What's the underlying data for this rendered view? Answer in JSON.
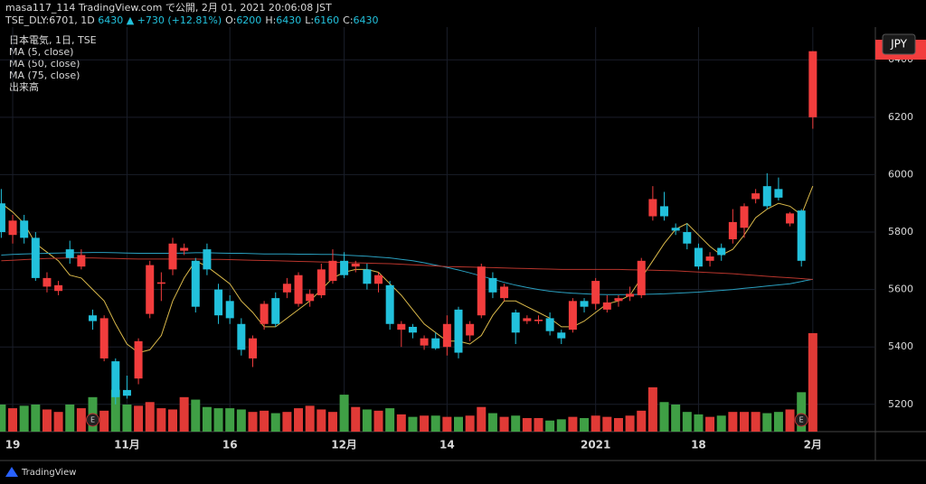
{
  "header": {
    "publisher": "masa117_114 TradingView.com で公開, 2月 01, 2021 20:06:08 JST",
    "symbol": "TSE_DLY:6701, 1D",
    "last": "6430",
    "change": "▲ +730 (+12.81%)",
    "ohlc": [
      {
        "key": "O:",
        "value": "6200"
      },
      {
        "key": "H:",
        "value": "6430"
      },
      {
        "key": "L:",
        "value": "6160"
      },
      {
        "key": "C:",
        "value": "6430"
      }
    ]
  },
  "footer": "TradingView",
  "chart_data": {
    "type": "candlestick",
    "name": "日本電気, 1日, TSE",
    "currency": "JPY",
    "volume_name": "出来高",
    "categories": [
      null,
      "19",
      null,
      null,
      null,
      null,
      null,
      null,
      null,
      null,
      null,
      "11月",
      null,
      null,
      null,
      null,
      null,
      null,
      null,
      null,
      "16",
      null,
      null,
      null,
      null,
      null,
      null,
      null,
      null,
      null,
      "12月",
      null,
      null,
      null,
      null,
      null,
      null,
      null,
      null,
      "14",
      null,
      null,
      null,
      null,
      null,
      null,
      null,
      null,
      null,
      null,
      null,
      null,
      "2021",
      null,
      null,
      null,
      null,
      null,
      null,
      null,
      null,
      "18",
      null,
      null,
      null,
      null,
      null,
      null,
      null,
      null,
      null,
      "2月"
    ],
    "open": [
      5900,
      5790,
      5840,
      5780,
      5610,
      5595,
      5740,
      5680,
      5510,
      5360,
      5350,
      5250,
      5290,
      5515,
      5620,
      5670,
      5735,
      5700,
      5740,
      5600,
      5560,
      5480,
      5360,
      5480,
      5570,
      5590,
      5550,
      5560,
      5580,
      5630,
      5700,
      5680,
      5670,
      5620,
      5615,
      5460,
      5470,
      5405,
      5430,
      5400,
      5530,
      5440,
      5510,
      5640,
      5570,
      5520,
      5490,
      5490,
      5500,
      5450,
      5460,
      5560,
      5550,
      5530,
      5560,
      5575,
      5580,
      5855,
      5890,
      5815,
      5800,
      5745,
      5700,
      5745,
      5775,
      5815,
      5915,
      5960,
      5950,
      5830,
      5875,
      6200
    ],
    "high": [
      5950,
      5860,
      5860,
      5800,
      5660,
      5630,
      5770,
      5740,
      5530,
      5510,
      5360,
      5300,
      5430,
      5700,
      5660,
      5780,
      5760,
      5710,
      5760,
      5620,
      5580,
      5500,
      5440,
      5560,
      5590,
      5640,
      5660,
      5600,
      5690,
      5740,
      5730,
      5700,
      5690,
      5660,
      5630,
      5490,
      5480,
      5440,
      5450,
      5510,
      5540,
      5490,
      5690,
      5660,
      5620,
      5530,
      5510,
      5510,
      5520,
      5460,
      5570,
      5570,
      5640,
      5580,
      5580,
      5610,
      5710,
      5960,
      5940,
      5830,
      5830,
      5760,
      5730,
      5760,
      5880,
      5900,
      5950,
      6005,
      5990,
      5870,
      5880,
      6430
    ],
    "low": [
      5780,
      5760,
      5760,
      5630,
      5590,
      5580,
      5690,
      5670,
      5460,
      5350,
      5200,
      5220,
      5270,
      5500,
      5560,
      5650,
      5720,
      5520,
      5650,
      5480,
      5480,
      5370,
      5330,
      5460,
      5470,
      5570,
      5540,
      5540,
      5570,
      5620,
      5640,
      5660,
      5600,
      5590,
      5460,
      5400,
      5430,
      5390,
      5390,
      5370,
      5360,
      5420,
      5500,
      5570,
      5560,
      5410,
      5480,
      5480,
      5440,
      5410,
      5450,
      5520,
      5530,
      5520,
      5540,
      5560,
      5570,
      5840,
      5840,
      5790,
      5740,
      5670,
      5680,
      5700,
      5760,
      5780,
      5900,
      5880,
      5910,
      5820,
      5680,
      6160
    ],
    "close": [
      5800,
      5840,
      5780,
      5640,
      5640,
      5615,
      5710,
      5720,
      5490,
      5500,
      5225,
      5230,
      5420,
      5685,
      5625,
      5760,
      5745,
      5540,
      5670,
      5510,
      5500,
      5390,
      5430,
      5550,
      5480,
      5620,
      5650,
      5585,
      5670,
      5700,
      5650,
      5690,
      5620,
      5650,
      5480,
      5480,
      5450,
      5430,
      5395,
      5480,
      5380,
      5480,
      5680,
      5590,
      5610,
      5450,
      5500,
      5495,
      5455,
      5430,
      5560,
      5540,
      5630,
      5555,
      5570,
      5585,
      5700,
      5915,
      5855,
      5805,
      5760,
      5680,
      5715,
      5720,
      5835,
      5890,
      5935,
      5890,
      5920,
      5865,
      5700,
      6430
    ],
    "volume": [
      110,
      95,
      105,
      110,
      90,
      80,
      110,
      95,
      140,
      85,
      170,
      110,
      105,
      120,
      95,
      90,
      140,
      130,
      100,
      95,
      95,
      90,
      80,
      85,
      75,
      80,
      95,
      105,
      90,
      80,
      150,
      100,
      90,
      85,
      95,
      70,
      60,
      65,
      65,
      60,
      60,
      65,
      100,
      75,
      60,
      65,
      55,
      55,
      45,
      50,
      60,
      55,
      65,
      60,
      55,
      65,
      85,
      180,
      120,
      110,
      80,
      70,
      60,
      65,
      80,
      80,
      80,
      75,
      80,
      90,
      160,
      400
    ],
    "volume_lim": [
      0,
      550
    ],
    "series": [
      {
        "name": "MA (5, close)",
        "color": "#d9b84a",
        "values": [
          5900,
          5870,
          5830,
          5760,
          5730,
          5700,
          5650,
          5640,
          5600,
          5560,
          5480,
          5410,
          5380,
          5390,
          5440,
          5560,
          5640,
          5700,
          5680,
          5650,
          5620,
          5560,
          5520,
          5470,
          5470,
          5500,
          5530,
          5560,
          5600,
          5640,
          5660,
          5670,
          5670,
          5660,
          5620,
          5580,
          5530,
          5480,
          5450,
          5420,
          5420,
          5410,
          5440,
          5510,
          5560,
          5560,
          5540,
          5520,
          5500,
          5470,
          5470,
          5490,
          5520,
          5550,
          5560,
          5580,
          5640,
          5700,
          5760,
          5810,
          5830,
          5790,
          5750,
          5720,
          5740,
          5790,
          5850,
          5880,
          5900,
          5890,
          5860,
          5960
        ]
      },
      {
        "name": "MA (50, close)",
        "color": "#2a9fbf",
        "values": [
          5720,
          5722,
          5724,
          5725,
          5726,
          5727,
          5728,
          5728,
          5729,
          5729,
          5728,
          5727,
          5726,
          5726,
          5726,
          5726,
          5727,
          5728,
          5728,
          5727,
          5726,
          5726,
          5725,
          5724,
          5724,
          5724,
          5723,
          5723,
          5722,
          5722,
          5720,
          5718,
          5716,
          5713,
          5710,
          5705,
          5700,
          5693,
          5685,
          5677,
          5668,
          5658,
          5647,
          5636,
          5625,
          5615,
          5607,
          5600,
          5594,
          5590,
          5587,
          5585,
          5583,
          5582,
          5582,
          5582,
          5583,
          5584,
          5585,
          5587,
          5589,
          5591,
          5594,
          5597,
          5600,
          5604,
          5608,
          5612,
          5616,
          5620,
          5628,
          5636
        ]
      },
      {
        "name": "MA (75, close)",
        "color": "#b8352c",
        "values": [
          5700,
          5702,
          5704,
          5706,
          5708,
          5709,
          5710,
          5710,
          5710,
          5709,
          5708,
          5707,
          5706,
          5706,
          5706,
          5706,
          5706,
          5706,
          5705,
          5705,
          5704,
          5703,
          5702,
          5701,
          5700,
          5699,
          5698,
          5697,
          5696,
          5695,
          5694,
          5693,
          5692,
          5691,
          5690,
          5688,
          5686,
          5684,
          5682,
          5680,
          5679,
          5678,
          5677,
          5676,
          5675,
          5674,
          5673,
          5672,
          5671,
          5670,
          5670,
          5670,
          5670,
          5670,
          5670,
          5669,
          5668,
          5667,
          5666,
          5665,
          5663,
          5661,
          5659,
          5657,
          5655,
          5652,
          5649,
          5646,
          5643,
          5641,
          5638,
          5635
        ]
      }
    ],
    "events": [
      {
        "index": 8,
        "label": "E"
      },
      {
        "index": 70,
        "label": "E"
      }
    ],
    "up_color": "#f23d3d",
    "down_color": "#22c1dc",
    "volume_up_color": "#e03a36",
    "volume_down_color": "#3f9f45",
    "ylim": [
      5105,
      6514
    ],
    "yticks": [
      5200,
      5400,
      5600,
      5800,
      6000,
      6200,
      6400
    ],
    "grid": true
  }
}
